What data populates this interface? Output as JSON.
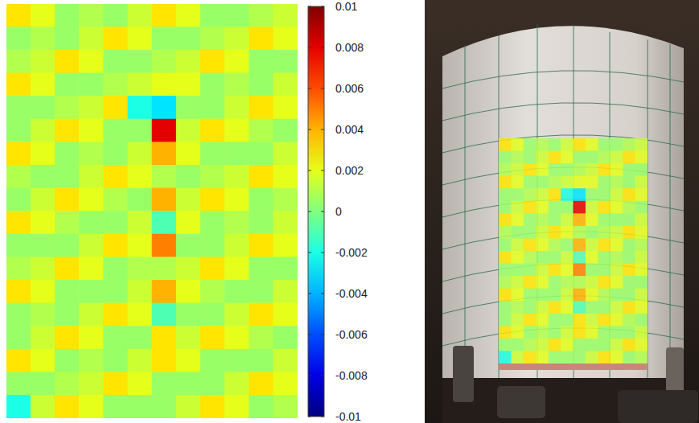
{
  "chart_data": {
    "type": "heatmap",
    "tick_labels": false,
    "cells": [
      [
        0.003,
        0.002,
        0.0005,
        0.001,
        0.0005,
        0.0015,
        0.003,
        0.002,
        0.0005,
        0.0005,
        0.001,
        0.0015
      ],
      [
        0.0005,
        0.001,
        0.0005,
        0.0015,
        0.003,
        0.002,
        0.0005,
        0.0005,
        0.001,
        0.0015,
        0.003,
        0.002
      ],
      [
        0.001,
        0.0015,
        0.003,
        0.002,
        0.0005,
        0.0005,
        0.001,
        0.0015,
        0.003,
        0.002,
        0.0005,
        0.0005
      ],
      [
        0.003,
        0.002,
        0.0005,
        0.0005,
        0.001,
        0.0015,
        0.002,
        0.002,
        0.0005,
        0.001,
        0.0005,
        0.0015
      ],
      [
        0.0005,
        0.0005,
        0.001,
        0.0015,
        0.003,
        -0.002,
        -0.003,
        0.0005,
        0.0005,
        0.0015,
        0.003,
        0.002
      ],
      [
        0.0005,
        0.0015,
        0.003,
        0.002,
        0.0005,
        0.0005,
        0.008,
        0.0015,
        0.003,
        0.002,
        0.001,
        0.0005
      ],
      [
        0.003,
        0.002,
        0.0005,
        0.001,
        0.0005,
        0.0015,
        0.004,
        0.002,
        0.0005,
        0.0005,
        0.0005,
        0.0015
      ],
      [
        0.001,
        0.0005,
        0.0005,
        0.0015,
        0.003,
        0.002,
        0.001,
        0.0005,
        0.001,
        0.0015,
        0.003,
        0.002
      ],
      [
        0.0005,
        0.0015,
        0.003,
        0.002,
        0.001,
        0.0005,
        0.004,
        0.0015,
        0.003,
        0.002,
        0.0005,
        0.001
      ],
      [
        0.003,
        0.002,
        0.001,
        0.0005,
        0.0005,
        0.0015,
        -0.001,
        0.002,
        0.0005,
        0.001,
        0.0005,
        0.0015
      ],
      [
        0.0005,
        0.0005,
        0.0005,
        0.0015,
        0.003,
        0.002,
        0.005,
        0.0005,
        0.0005,
        0.0015,
        0.003,
        0.002
      ],
      [
        0.001,
        0.0015,
        0.003,
        0.002,
        0.0005,
        0.001,
        0.001,
        0.0015,
        0.003,
        0.002,
        0.0005,
        0.0005
      ],
      [
        0.003,
        0.002,
        0.0005,
        0.0005,
        0.0005,
        0.0015,
        0.004,
        0.002,
        0.001,
        0.0005,
        0.0005,
        0.0015
      ],
      [
        0.0005,
        0.001,
        0.0005,
        0.0015,
        0.003,
        0.002,
        -0.001,
        0.0005,
        0.0005,
        0.0015,
        0.003,
        0.002
      ],
      [
        0.0005,
        0.0015,
        0.003,
        0.002,
        0.0005,
        0.0005,
        0.003,
        0.0015,
        0.003,
        0.002,
        0.001,
        0.0005
      ],
      [
        0.003,
        0.002,
        0.0005,
        0.001,
        0.0005,
        0.0015,
        0.003,
        0.002,
        0.0005,
        0.0005,
        0.0005,
        0.0015
      ],
      [
        0.0005,
        0.0005,
        0.001,
        0.0015,
        0.003,
        0.002,
        0.0005,
        0.0005,
        0.0005,
        0.0015,
        0.003,
        0.002
      ],
      [
        -0.002,
        0.0015,
        0.003,
        0.002,
        0.0005,
        0.0005,
        0.0005,
        0.0015,
        0.003,
        0.002,
        0.0005,
        0.001
      ]
    ],
    "colorbar_range": [
      -0.01,
      0.01
    ],
    "colorbar_ticks": [
      0.01,
      0.008,
      0.006,
      0.004,
      0.002,
      0,
      -0.002,
      -0.004,
      -0.006,
      -0.008,
      -0.01
    ]
  }
}
